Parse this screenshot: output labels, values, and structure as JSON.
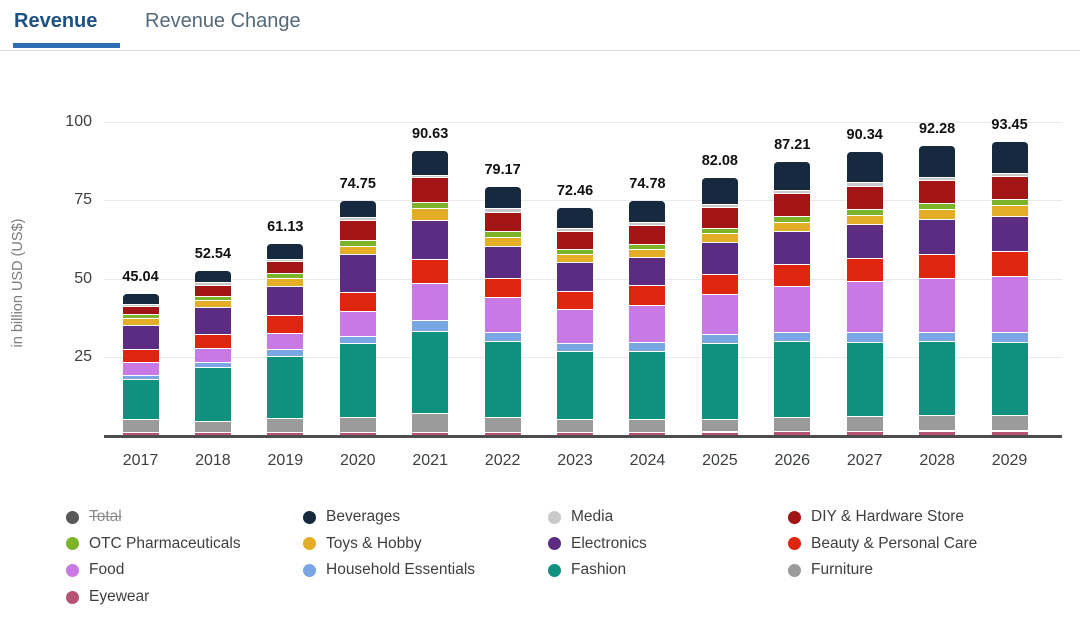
{
  "tabs": {
    "active_color": "#1d5083",
    "inactive_color": "#536878",
    "underline_color": "#2e6db4",
    "items": [
      {
        "label": "Revenue",
        "active": true
      },
      {
        "label": "Revenue Change",
        "active": false
      }
    ]
  },
  "chart_data": {
    "type": "bar",
    "stacked": true,
    "title": "",
    "xlabel": "",
    "ylabel": "in billion USD (US$)",
    "ylim": [
      0,
      100
    ],
    "yticks": [
      25,
      50,
      75,
      100
    ],
    "grid": true,
    "legend_position": "bottom",
    "categories": [
      2017,
      2018,
      2019,
      2020,
      2021,
      2022,
      2023,
      2024,
      2025,
      2026,
      2027,
      2028,
      2029
    ],
    "totals": [
      45.04,
      52.54,
      61.13,
      74.75,
      90.63,
      79.17,
      72.46,
      74.78,
      82.08,
      87.21,
      90.34,
      92.28,
      93.45
    ],
    "series_bottom_to_top": [
      {
        "name": "Eyewear",
        "color": "#b65273",
        "values": [
          1.05,
          0.97,
          0.91,
          1.06,
          1.1,
          1.1,
          1.04,
          1.11,
          1.11,
          1.26,
          1.41,
          1.43,
          1.43
        ]
      },
      {
        "name": "Furniture",
        "color": "#9b9b9b",
        "values": [
          3.9,
          3.62,
          4.6,
          4.58,
          5.78,
          4.51,
          3.99,
          3.97,
          3.9,
          4.37,
          4.74,
          4.85,
          4.92
        ]
      },
      {
        "name": "Fashion",
        "color": "#0f9180",
        "values": [
          12.87,
          17.14,
          19.65,
          23.7,
          26.13,
          24.2,
          21.6,
          21.69,
          24.25,
          24.12,
          23.43,
          23.46,
          23.3
        ]
      },
      {
        "name": "Household Essentials",
        "color": "#7aa6e4",
        "values": [
          1.37,
          1.38,
          2.11,
          2.05,
          3.51,
          3.02,
          2.76,
          2.85,
          3.0,
          3.1,
          3.12,
          3.12,
          3.1
        ]
      },
      {
        "name": "Food",
        "color": "#c979e4",
        "values": [
          3.9,
          4.52,
          5.28,
          7.97,
          11.88,
          10.93,
          10.65,
          11.7,
          12.65,
          14.63,
          16.27,
          17.18,
          17.95
        ]
      },
      {
        "name": "Beauty & Personal Care",
        "color": "#e0250f",
        "values": [
          4.22,
          4.52,
          5.6,
          6.25,
          7.54,
          6.16,
          5.83,
          6.23,
          6.38,
          6.88,
          7.22,
          7.49,
          7.69
        ]
      },
      {
        "name": "Electronics",
        "color": "#5c2b82",
        "values": [
          7.81,
          8.52,
          9.19,
          11.85,
          12.39,
          10.14,
          9.07,
          9.13,
          10.07,
          10.6,
          10.88,
          11.15,
          11.33
        ]
      },
      {
        "name": "Toys & Hobby",
        "color": "#e3ad26",
        "values": [
          2.11,
          2.34,
          2.59,
          2.75,
          3.82,
          2.81,
          2.49,
          2.47,
          2.79,
          2.86,
          2.86,
          3.15,
          3.42
        ]
      },
      {
        "name": "OTC Pharmaceuticals",
        "color": "#7db32a",
        "values": [
          1.37,
          1.06,
          1.48,
          1.72,
          1.96,
          2.02,
          1.76,
          1.72,
          1.69,
          1.84,
          1.94,
          1.94,
          1.92
        ]
      },
      {
        "name": "DIY & Hardware Store",
        "color": "#a31414",
        "values": [
          2.43,
          3.73,
          3.91,
          6.41,
          7.85,
          6.16,
          5.68,
          5.91,
          6.75,
          7.17,
          7.43,
          7.38,
          7.27
        ]
      },
      {
        "name": "Media",
        "color": "#c9c9c9",
        "values": [
          0.63,
          0.8,
          0.74,
          0.92,
          0.72,
          1.01,
          0.86,
          0.81,
          1.0,
          1.02,
          1.02,
          0.97,
          0.91
        ]
      },
      {
        "name": "Beverages",
        "color": "#16293e",
        "values": [
          3.38,
          3.94,
          5.07,
          5.49,
          7.95,
          7.11,
          6.73,
          7.19,
          8.49,
          9.36,
          10.02,
          10.16,
          10.21
        ]
      }
    ],
    "legend": [
      {
        "label": "Total",
        "color": "#58585a",
        "disabled": true
      },
      {
        "label": "Beverages",
        "color": "#16293e",
        "disabled": false
      },
      {
        "label": "Media",
        "color": "#c9c9c9",
        "disabled": false
      },
      {
        "label": "DIY & Hardware Store",
        "color": "#a31414",
        "disabled": false
      },
      {
        "label": "OTC Pharmaceuticals",
        "color": "#7db32a",
        "disabled": false
      },
      {
        "label": "Toys & Hobby",
        "color": "#e3ad26",
        "disabled": false
      },
      {
        "label": "Electronics",
        "color": "#5c2b82",
        "disabled": false
      },
      {
        "label": "Beauty & Personal Care",
        "color": "#e0250f",
        "disabled": false
      },
      {
        "label": "Food",
        "color": "#c979e4",
        "disabled": false
      },
      {
        "label": "Household Essentials",
        "color": "#7aa6e4",
        "disabled": false
      },
      {
        "label": "Fashion",
        "color": "#0f9180",
        "disabled": false
      },
      {
        "label": "Furniture",
        "color": "#9b9b9b",
        "disabled": false
      },
      {
        "label": "Eyewear",
        "color": "#b65273",
        "disabled": false
      }
    ]
  }
}
